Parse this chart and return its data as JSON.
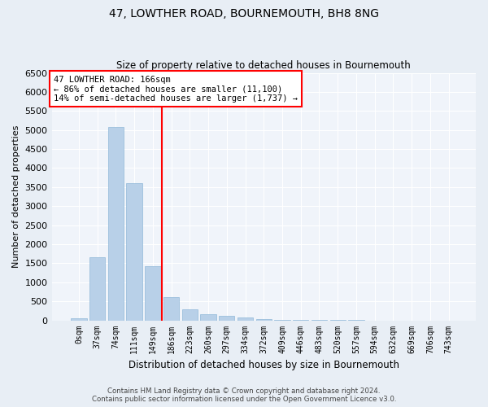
{
  "title": "47, LOWTHER ROAD, BOURNEMOUTH, BH8 8NG",
  "subtitle": "Size of property relative to detached houses in Bournemouth",
  "xlabel": "Distribution of detached houses by size in Bournemouth",
  "ylabel": "Number of detached properties",
  "bar_labels": [
    "0sqm",
    "37sqm",
    "74sqm",
    "111sqm",
    "149sqm",
    "186sqm",
    "223sqm",
    "260sqm",
    "297sqm",
    "334sqm",
    "372sqm",
    "409sqm",
    "446sqm",
    "483sqm",
    "520sqm",
    "557sqm",
    "594sqm",
    "632sqm",
    "669sqm",
    "706sqm",
    "743sqm"
  ],
  "bar_values": [
    50,
    1650,
    5080,
    3600,
    1420,
    600,
    300,
    155,
    110,
    80,
    30,
    20,
    10,
    5,
    3,
    2,
    1,
    1,
    0,
    0,
    0
  ],
  "bar_color": "#b8d0e8",
  "bar_edge_color": "#90b8d8",
  "vline_x": 4.5,
  "vline_color": "red",
  "ylim": [
    0,
    6500
  ],
  "yticks": [
    0,
    500,
    1000,
    1500,
    2000,
    2500,
    3000,
    3500,
    4000,
    4500,
    5000,
    5500,
    6000,
    6500
  ],
  "annotation_title": "47 LOWTHER ROAD: 166sqm",
  "annotation_line1": "← 86% of detached houses are smaller (11,100)",
  "annotation_line2": "14% of semi-detached houses are larger (1,737) →",
  "annotation_box_color": "red",
  "footer1": "Contains HM Land Registry data © Crown copyright and database right 2024.",
  "footer2": "Contains public sector information licensed under the Open Government Licence v3.0.",
  "bg_color": "#e8eef5",
  "plot_bg_color": "#f0f4fa"
}
